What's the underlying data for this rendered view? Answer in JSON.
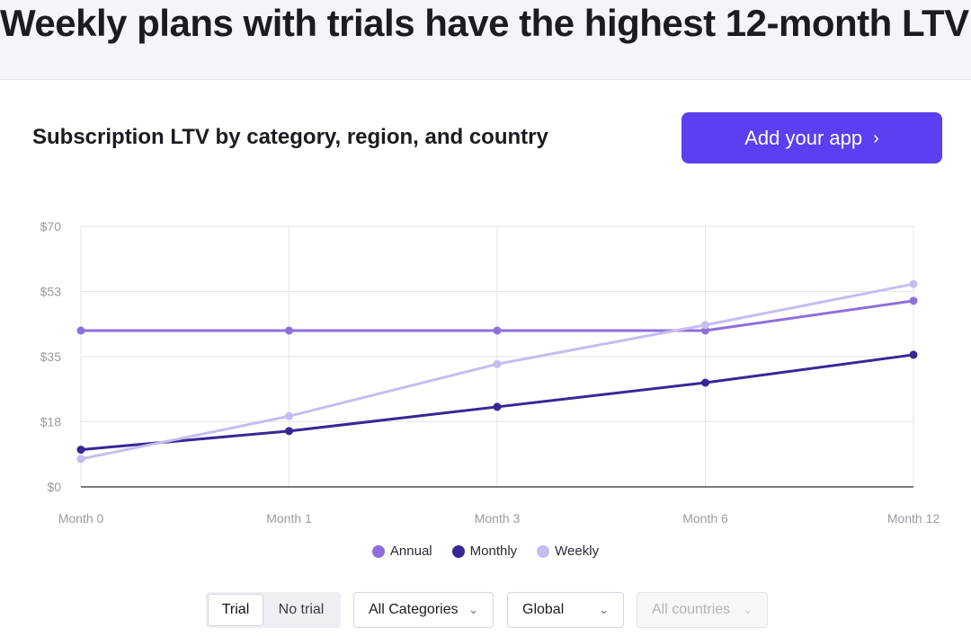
{
  "headline": "Weekly plans with trials have the highest 12-month LTV",
  "card": {
    "title": "Subscription LTV by category, region, and country",
    "add_app_label": "Add your app",
    "add_app_icon": "chevron-right-icon"
  },
  "colors": {
    "annual": "#8e6fdc",
    "monthly": "#3a2596",
    "weekly": "#c7bcf0",
    "accent": "#5c3ff0"
  },
  "chart_data": {
    "type": "line",
    "title": "",
    "xlabel": "",
    "ylabel": "",
    "categories": [
      "Month 0",
      "Month 1",
      "Month 3",
      "Month 6",
      "Month 12"
    ],
    "y_ticks": [
      "$0",
      "$18",
      "$35",
      "$53",
      "$70"
    ],
    "ylim": [
      0,
      70
    ],
    "grid": true,
    "legend_position": "bottom-center",
    "series": [
      {
        "name": "Annual",
        "values": [
          42,
          42,
          42,
          42,
          50
        ]
      },
      {
        "name": "Monthly",
        "values": [
          10,
          15,
          21.5,
          28,
          35.5
        ]
      },
      {
        "name": "Weekly",
        "values": [
          7.5,
          19,
          33,
          43.5,
          54.5
        ]
      }
    ]
  },
  "controls": {
    "trial_toggle": {
      "options": [
        "Trial",
        "No trial"
      ],
      "selected": "Trial"
    },
    "category_select": {
      "value": "All Categories"
    },
    "region_select": {
      "value": "Global"
    },
    "country_select": {
      "value": "All countries"
    }
  }
}
